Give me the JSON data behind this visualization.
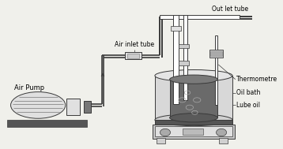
{
  "bg_color": "#f0f0eb",
  "line_color": "#3a3a3a",
  "dark_gray": "#555555",
  "mid_gray": "#888888",
  "light_gray": "#cccccc",
  "very_light_gray": "#e0e0e0",
  "labels": {
    "air_pump": "Air Pump",
    "air_inlet": "Air inlet tube",
    "outlet": "Out let tube",
    "thermometre": "Thermometre",
    "oil_bath": "Oil bath",
    "lube_oil": "Lube oil"
  },
  "label_fontsize": 5.5,
  "figsize": [
    3.58,
    1.89
  ],
  "dpi": 100
}
